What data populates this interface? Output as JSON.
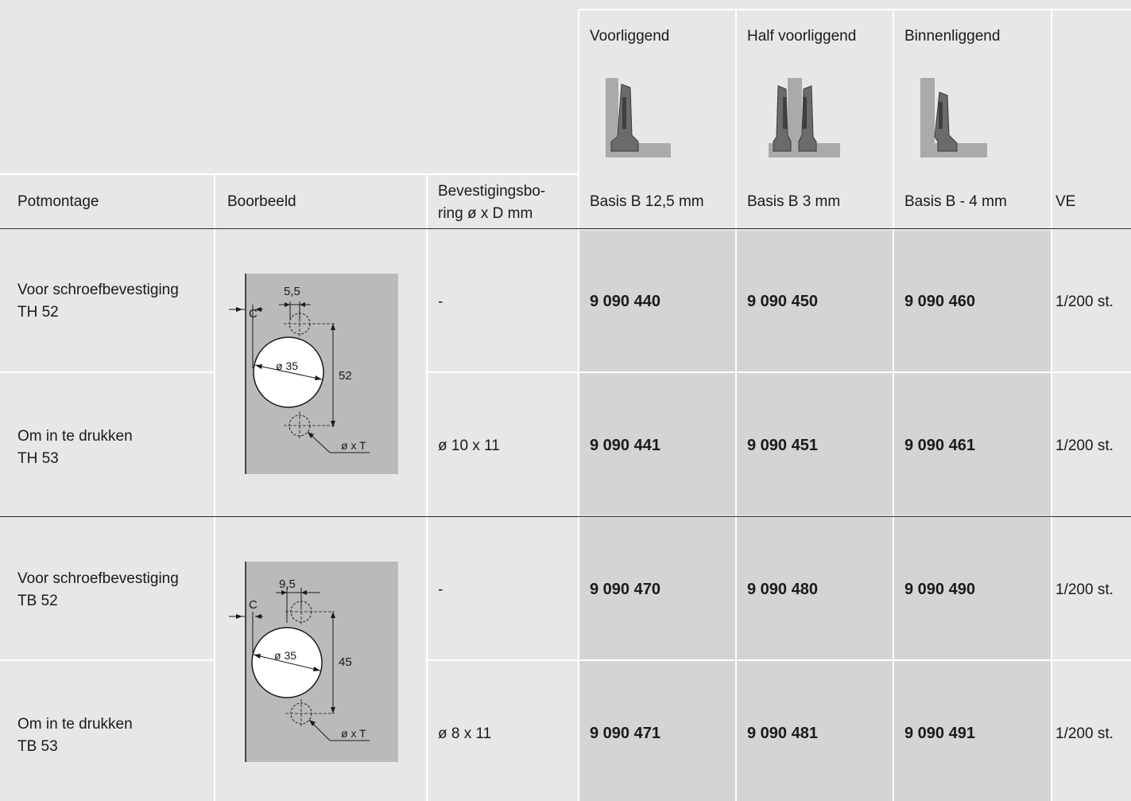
{
  "colors": {
    "page": "#e6e7e9",
    "cell_shaded": "#d3d4d6",
    "hinge_dark": "#6a6b6d",
    "wall": "#a9aaac"
  },
  "headers": {
    "potmontage": "Potmontage",
    "boorbeeld": "Boorbeeld",
    "bevestigingsboring_1": "Bevestigingsbo-",
    "bevestigingsboring_2": "ring ø x D mm",
    "voorliggend": "Voorliggend",
    "half_voorliggend": "Half voorliggend",
    "binnenliggend": "Binnenliggend",
    "basis_voor": "Basis B 12,5 mm",
    "basis_half": "Basis B 3 mm",
    "basis_binnen": "Basis B - 4 mm",
    "ve": "VE"
  },
  "rows": [
    {
      "mount_1": "Voor schroefbevestiging",
      "mount_2": "TH 52",
      "boring": "-",
      "voor": "9 090 440",
      "half": "9 090 450",
      "binnen": "9 090 460",
      "ve": "1/200 st."
    },
    {
      "mount_1": "Om in te drukken",
      "mount_2": "TH 53",
      "boring": "ø 10 x 11",
      "voor": "9 090 441",
      "half": "9 090 451",
      "binnen": "9 090 461",
      "ve": "1/200 st."
    },
    {
      "mount_1": "Voor schroefbevestiging",
      "mount_2": "TB 52",
      "boring": "-",
      "voor": "9 090 470",
      "half": "9 090 480",
      "binnen": "9 090 490",
      "ve": "1/200 st."
    },
    {
      "mount_1": "Om in te drukken",
      "mount_2": "TB 53",
      "boring": "ø 8 x 11",
      "voor": "9 090 471",
      "half": "9 090 481",
      "binnen": "9 090 491",
      "ve": "1/200 st."
    }
  ],
  "drawings": [
    {
      "offset": "5,5",
      "distance": "52",
      "diameter": "ø 35",
      "c_label": "C",
      "hole_label": "ø x T"
    },
    {
      "offset": "9,5",
      "distance": "45",
      "diameter": "ø 35",
      "c_label": "C",
      "hole_label": "ø x T"
    }
  ]
}
